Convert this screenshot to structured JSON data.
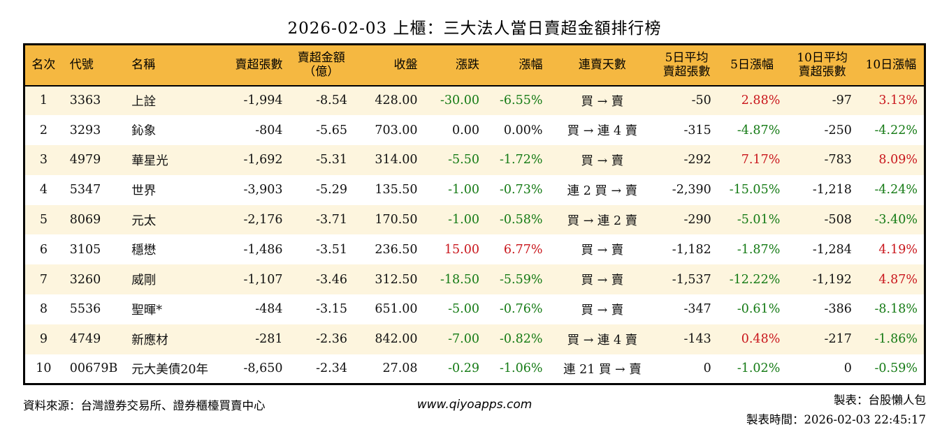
{
  "title": "2026-02-03 上櫃：三大法人當日賣超金額排行榜",
  "colors": {
    "up": "#c9161c",
    "down": "#147a14",
    "flat": "#111111",
    "header_bg": "#f5b841",
    "row_alt_bg": "#fdf5de",
    "row_bg": "#ffffff"
  },
  "table": {
    "columns": [
      {
        "key": "rank",
        "label": "名次",
        "align": "center"
      },
      {
        "key": "code",
        "label": "代號",
        "align": "left"
      },
      {
        "key": "name",
        "label": "名稱",
        "align": "left"
      },
      {
        "key": "sell_shares",
        "label": "賣超張數",
        "align": "right"
      },
      {
        "key": "sell_amount",
        "label": "賣超金額\n（億）",
        "align": "right",
        "header_align": "center"
      },
      {
        "key": "close",
        "label": "收盤",
        "align": "right"
      },
      {
        "key": "change",
        "label": "漲跌",
        "align": "right"
      },
      {
        "key": "change_pct",
        "label": "漲幅",
        "align": "right"
      },
      {
        "key": "streak",
        "label": "連賣天數",
        "align": "center"
      },
      {
        "key": "avg5",
        "label": "5日平均\n賣超張數",
        "align": "right",
        "header_align": "center"
      },
      {
        "key": "pct5",
        "label": "5日漲幅",
        "align": "right",
        "header_align": "center"
      },
      {
        "key": "avg10",
        "label": "10日平均\n賣超張數",
        "align": "right",
        "header_align": "center"
      },
      {
        "key": "pct10",
        "label": "10日漲幅",
        "align": "right",
        "header_align": "center"
      }
    ],
    "rows": [
      {
        "rank": "1",
        "code": "3363",
        "name": "上詮",
        "sell_shares": "-1,994",
        "sell_amount": "-8.54",
        "close": "428.00",
        "change": "-30.00",
        "change_color": "down",
        "change_pct": "-6.55%",
        "change_pct_color": "down",
        "streak": "買 → 賣",
        "avg5": "-50",
        "pct5": "2.88%",
        "pct5_color": "up",
        "avg10": "-97",
        "pct10": "3.13%",
        "pct10_color": "up"
      },
      {
        "rank": "2",
        "code": "3293",
        "name": "鈊象",
        "sell_shares": "-804",
        "sell_amount": "-5.65",
        "close": "703.00",
        "change": "0.00",
        "change_color": "flat",
        "change_pct": "0.00%",
        "change_pct_color": "flat",
        "streak": "買 → 連 4 賣",
        "avg5": "-315",
        "pct5": "-4.87%",
        "pct5_color": "down",
        "avg10": "-250",
        "pct10": "-4.22%",
        "pct10_color": "down"
      },
      {
        "rank": "3",
        "code": "4979",
        "name": "華星光",
        "sell_shares": "-1,692",
        "sell_amount": "-5.31",
        "close": "314.00",
        "change": "-5.50",
        "change_color": "down",
        "change_pct": "-1.72%",
        "change_pct_color": "down",
        "streak": "買 → 賣",
        "avg5": "-292",
        "pct5": "7.17%",
        "pct5_color": "up",
        "avg10": "-783",
        "pct10": "8.09%",
        "pct10_color": "up"
      },
      {
        "rank": "4",
        "code": "5347",
        "name": "世界",
        "sell_shares": "-3,903",
        "sell_amount": "-5.29",
        "close": "135.50",
        "change": "-1.00",
        "change_color": "down",
        "change_pct": "-0.73%",
        "change_pct_color": "down",
        "streak": "連 2 買 → 賣",
        "avg5": "-2,390",
        "pct5": "-15.05%",
        "pct5_color": "down",
        "avg10": "-1,218",
        "pct10": "-4.24%",
        "pct10_color": "down"
      },
      {
        "rank": "5",
        "code": "8069",
        "name": "元太",
        "sell_shares": "-2,176",
        "sell_amount": "-3.71",
        "close": "170.50",
        "change": "-1.00",
        "change_color": "down",
        "change_pct": "-0.58%",
        "change_pct_color": "down",
        "streak": "買 → 連 2 賣",
        "avg5": "-290",
        "pct5": "-5.01%",
        "pct5_color": "down",
        "avg10": "-508",
        "pct10": "-3.40%",
        "pct10_color": "down"
      },
      {
        "rank": "6",
        "code": "3105",
        "name": "穩懋",
        "sell_shares": "-1,486",
        "sell_amount": "-3.51",
        "close": "236.50",
        "change": "15.00",
        "change_color": "up",
        "change_pct": "6.77%",
        "change_pct_color": "up",
        "streak": "買 → 賣",
        "avg5": "-1,182",
        "pct5": "-1.87%",
        "pct5_color": "down",
        "avg10": "-1,284",
        "pct10": "4.19%",
        "pct10_color": "up"
      },
      {
        "rank": "7",
        "code": "3260",
        "name": "威剛",
        "sell_shares": "-1,107",
        "sell_amount": "-3.46",
        "close": "312.50",
        "change": "-18.50",
        "change_color": "down",
        "change_pct": "-5.59%",
        "change_pct_color": "down",
        "streak": "買 → 賣",
        "avg5": "-1,537",
        "pct5": "-12.22%",
        "pct5_color": "down",
        "avg10": "-1,192",
        "pct10": "4.87%",
        "pct10_color": "up"
      },
      {
        "rank": "8",
        "code": "5536",
        "name": "聖暉*",
        "sell_shares": "-484",
        "sell_amount": "-3.15",
        "close": "651.00",
        "change": "-5.00",
        "change_color": "down",
        "change_pct": "-0.76%",
        "change_pct_color": "down",
        "streak": "買 → 賣",
        "avg5": "-347",
        "pct5": "-0.61%",
        "pct5_color": "down",
        "avg10": "-386",
        "pct10": "-8.18%",
        "pct10_color": "down"
      },
      {
        "rank": "9",
        "code": "4749",
        "name": "新應材",
        "sell_shares": "-281",
        "sell_amount": "-2.36",
        "close": "842.00",
        "change": "-7.00",
        "change_color": "down",
        "change_pct": "-0.82%",
        "change_pct_color": "down",
        "streak": "買 → 連 4 賣",
        "avg5": "-143",
        "pct5": "0.48%",
        "pct5_color": "up",
        "avg10": "-217",
        "pct10": "-1.86%",
        "pct10_color": "down"
      },
      {
        "rank": "10",
        "code": "00679B",
        "name": "元大美債20年",
        "sell_shares": "-8,650",
        "sell_amount": "-2.34",
        "close": "27.08",
        "change": "-0.29",
        "change_color": "down",
        "change_pct": "-1.06%",
        "change_pct_color": "down",
        "streak": "連 21 買 → 賣",
        "avg5": "0",
        "pct5": "-1.02%",
        "pct5_color": "down",
        "avg10": "0",
        "pct10": "-0.59%",
        "pct10_color": "down"
      }
    ]
  },
  "footer": {
    "source": "資料來源：台灣證券交易所、證券櫃檯買賣中心",
    "website": "www.qiyoapps.com",
    "made_by": "製表：台股懶人包",
    "made_time": "製表時間：2026-02-03 22:45:17"
  }
}
